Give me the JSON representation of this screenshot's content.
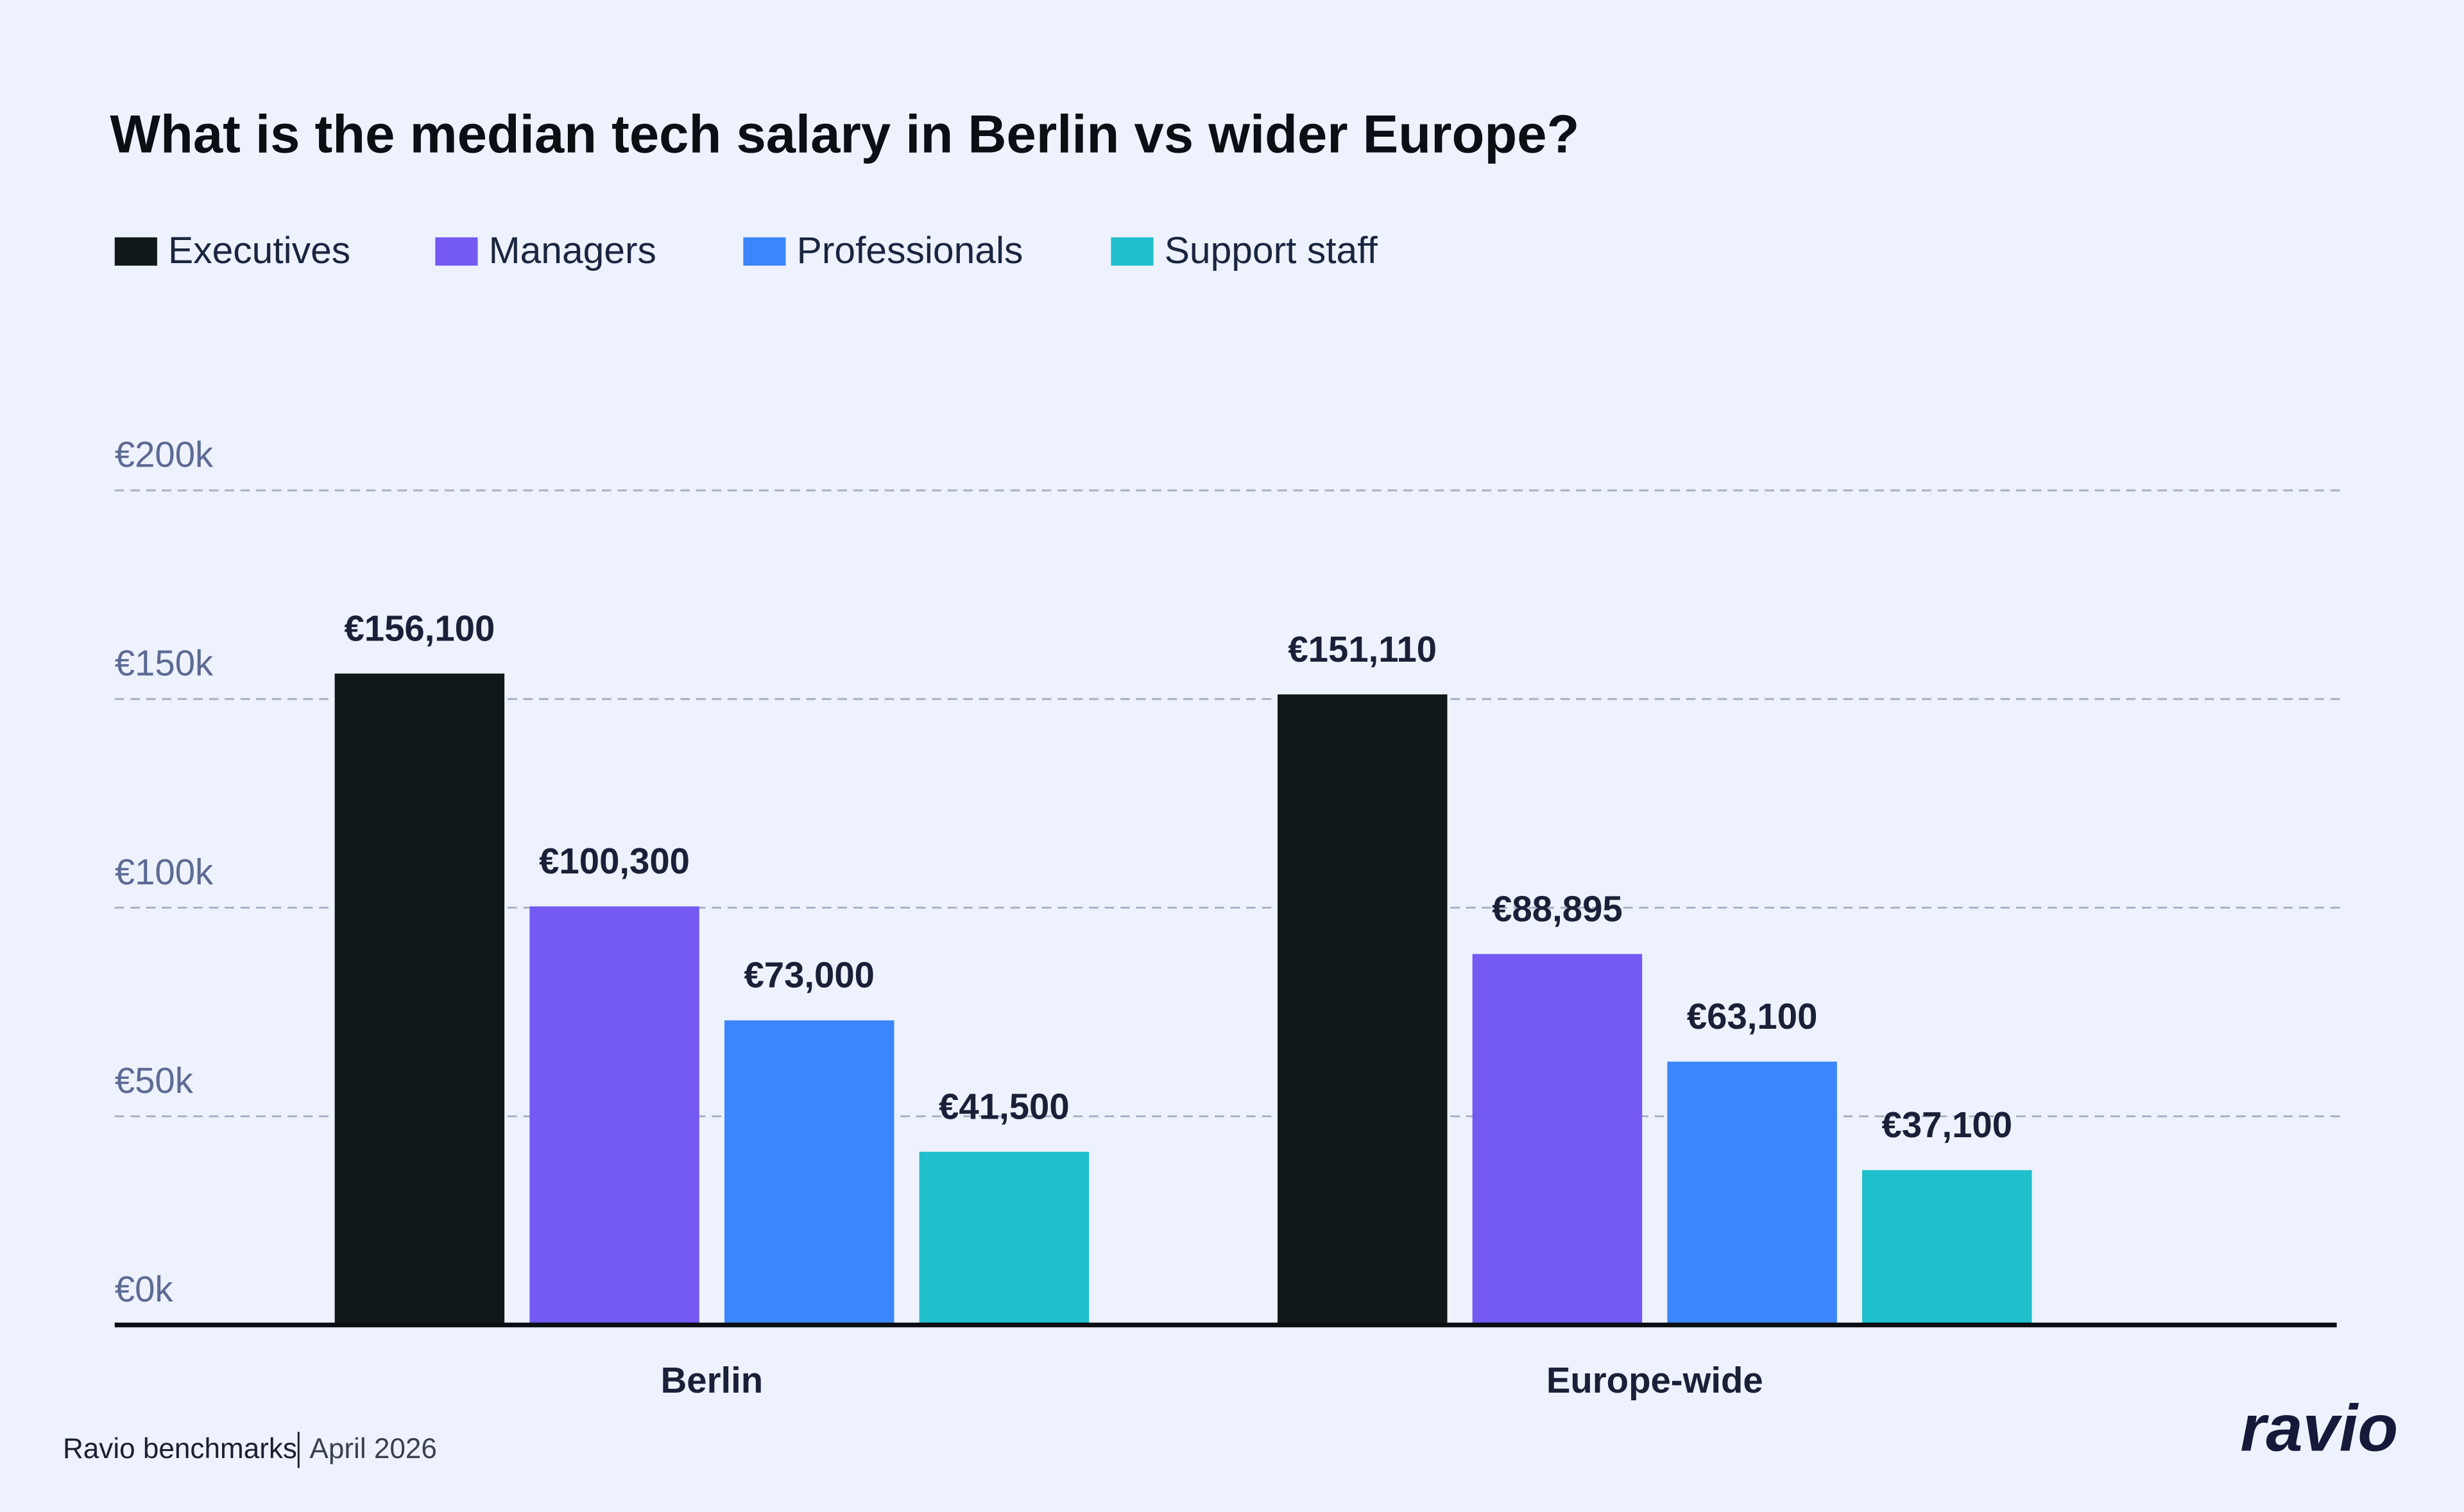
{
  "chart_data": {
    "type": "bar",
    "title": "What is the median tech salary in Berlin vs wider Europe?",
    "categories": [
      "Berlin",
      "Europe-wide"
    ],
    "series": [
      {
        "name": "Executives",
        "color": "#111819",
        "values": [
          156100,
          151110
        ],
        "value_labels": [
          "€156,100",
          "€151,110"
        ]
      },
      {
        "name": "Managers",
        "color": "#7459f3",
        "values": [
          100300,
          88895
        ],
        "value_labels": [
          "€100,300",
          "€88,895"
        ]
      },
      {
        "name": "Professionals",
        "color": "#3b86fb",
        "values": [
          73000,
          63100
        ],
        "value_labels": [
          "€73,000",
          "€63,100"
        ]
      },
      {
        "name": "Support staff",
        "color": "#1fbfcc",
        "values": [
          41500,
          37100
        ],
        "value_labels": [
          "€41,500",
          "€37,100"
        ]
      }
    ],
    "ylim": [
      0,
      200000
    ],
    "yticks": [
      {
        "value": 0,
        "label": "€0k"
      },
      {
        "value": 50000,
        "label": "€50k"
      },
      {
        "value": 100000,
        "label": "€100k"
      },
      {
        "value": 150000,
        "label": "€150k"
      },
      {
        "value": 200000,
        "label": "€200k"
      }
    ],
    "grid": true,
    "legend": "top-left",
    "source": "Ravio benchmarks",
    "date": "April 2026",
    "logo": "ravio"
  }
}
